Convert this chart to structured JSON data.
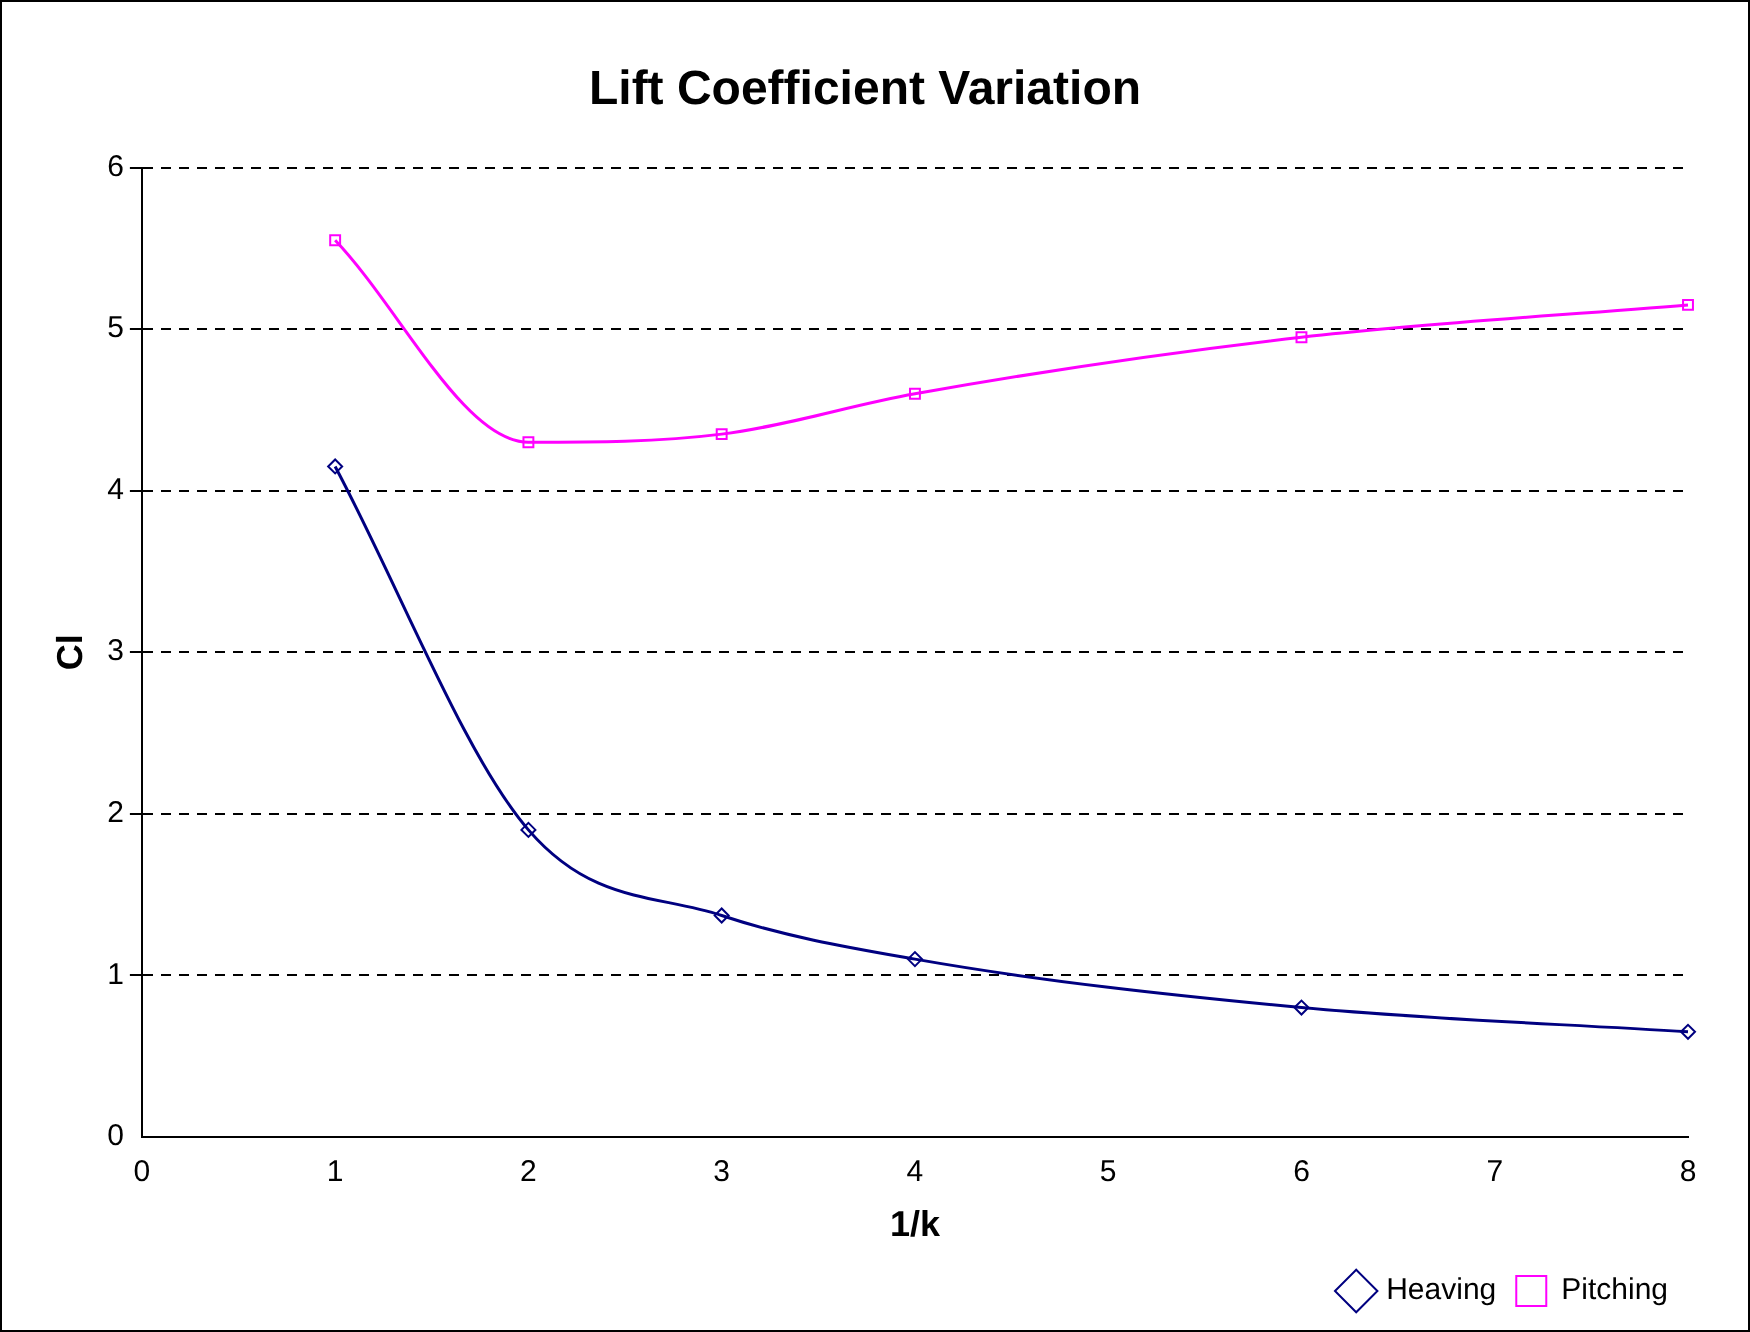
{
  "chart_data": {
    "type": "line",
    "title": "Lift Coefficient Variation",
    "xlabel": "1/k",
    "ylabel": "Cl",
    "x": [
      1,
      2,
      3,
      4,
      6,
      8
    ],
    "series": [
      {
        "name": "Heaving",
        "color": "#000080",
        "values": [
          4.15,
          1.9,
          1.37,
          1.1,
          0.8,
          0.65
        ],
        "marker": "diamond"
      },
      {
        "name": "Pitching",
        "color": "#ff00ff",
        "values": [
          5.55,
          4.3,
          4.35,
          4.6,
          4.95,
          5.15
        ],
        "marker": "square"
      }
    ],
    "xlim": [
      0,
      8
    ],
    "xticks": [
      0,
      1,
      2,
      3,
      4,
      5,
      6,
      7,
      8
    ],
    "ylim": [
      0,
      6
    ],
    "yticks": [
      0,
      1,
      2,
      3,
      4,
      5,
      6
    ],
    "grid": "y",
    "legend": "bottom right",
    "line_style": "solid"
  }
}
